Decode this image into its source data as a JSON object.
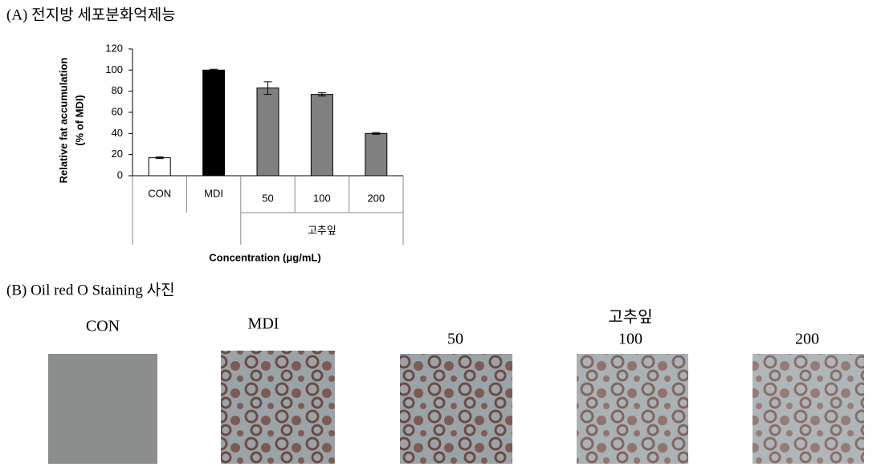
{
  "heading_a": "(A) 전지방 세포분화억제능",
  "chart_data": {
    "type": "bar",
    "ylabel": [
      "Relative fat accumulation",
      "(% of MDI)"
    ],
    "xlabel": "Concentration (μg/mL)",
    "group_label": "고추잎",
    "categories": [
      "CON",
      "MDI",
      "50",
      "100",
      "200"
    ],
    "values": [
      17,
      100,
      83,
      77,
      40
    ],
    "errors": [
      0.8,
      0.8,
      6,
      1.5,
      0.8
    ],
    "colors": [
      "#ffffff",
      "#000000",
      "#808080",
      "#808080",
      "#808080"
    ],
    "ylim": [
      0,
      120
    ],
    "yticks": [
      0,
      20,
      40,
      60,
      80,
      100,
      120
    ]
  },
  "heading_b": "(B) Oil red O Staining 사진",
  "images": {
    "group_label": "고추잎",
    "labels": [
      "CON",
      "MDI",
      "50",
      "100",
      "200"
    ]
  }
}
